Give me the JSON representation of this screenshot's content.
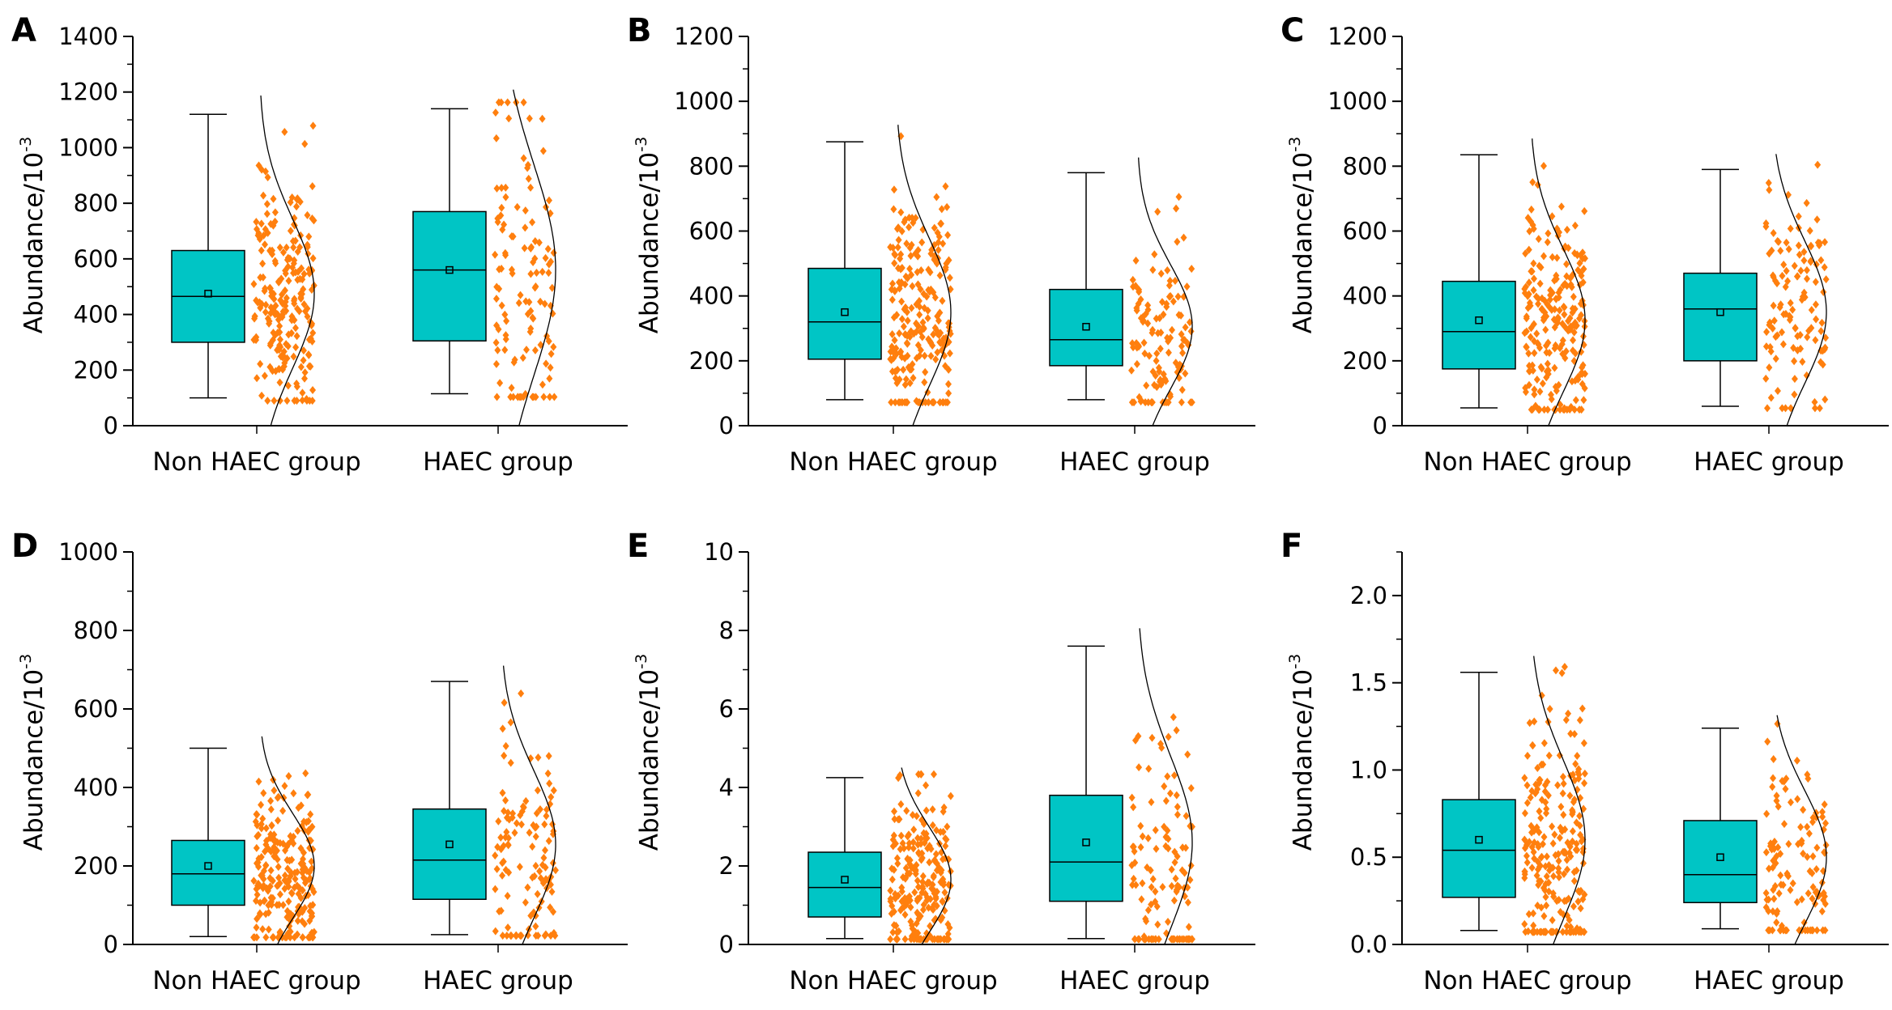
{
  "colors": {
    "box": "#00c5c5",
    "points": "#ff7f0e",
    "curve": "#000000"
  },
  "chart_data": [
    {
      "panel": "A",
      "type": "box",
      "ylabel": "Abundance/10",
      "ylabel_exp": "-3",
      "ylim": [
        0,
        1400
      ],
      "yticks": [
        0,
        200,
        400,
        600,
        800,
        1000,
        1200,
        1400
      ],
      "tick_labels": [
        "0",
        "200",
        "400",
        "600",
        "800",
        "1000",
        "1200",
        "1400"
      ],
      "categories": [
        "Non HAEC group",
        "HAEC group"
      ],
      "boxes": [
        {
          "min": 100,
          "q1": 300,
          "median": 465,
          "q3": 630,
          "max": 1120,
          "mean": 475
        },
        {
          "min": 115,
          "q1": 305,
          "median": 560,
          "q3": 770,
          "max": 1140,
          "mean": 560
        }
      ]
    },
    {
      "panel": "B",
      "type": "box",
      "ylabel": "Abundance/10",
      "ylabel_exp": "-3",
      "ylim": [
        0,
        1200
      ],
      "yticks": [
        0,
        200,
        400,
        600,
        800,
        1000,
        1200
      ],
      "tick_labels": [
        "0",
        "200",
        "400",
        "600",
        "800",
        "1000",
        "1200"
      ],
      "categories": [
        "Non HAEC group",
        "HAEC group"
      ],
      "boxes": [
        {
          "min": 80,
          "q1": 205,
          "median": 320,
          "q3": 485,
          "max": 875,
          "mean": 350
        },
        {
          "min": 80,
          "q1": 185,
          "median": 265,
          "q3": 420,
          "max": 780,
          "mean": 305
        }
      ]
    },
    {
      "panel": "C",
      "type": "box",
      "ylabel": "Abundance/10",
      "ylabel_exp": "-3",
      "ylim": [
        0,
        1200
      ],
      "yticks": [
        0,
        200,
        400,
        600,
        800,
        1000,
        1200
      ],
      "tick_labels": [
        "0",
        "200",
        "400",
        "600",
        "800",
        "1000",
        "1200"
      ],
      "categories": [
        "Non HAEC group",
        "HAEC group"
      ],
      "boxes": [
        {
          "min": 55,
          "q1": 175,
          "median": 290,
          "q3": 445,
          "max": 835,
          "mean": 325
        },
        {
          "min": 60,
          "q1": 200,
          "median": 360,
          "q3": 470,
          "max": 790,
          "mean": 350
        }
      ]
    },
    {
      "panel": "D",
      "type": "box",
      "ylabel": "Abundance/10",
      "ylabel_exp": "-3",
      "ylim": [
        0,
        1000
      ],
      "yticks": [
        0,
        200,
        400,
        600,
        800,
        1000
      ],
      "tick_labels": [
        "0",
        "200",
        "400",
        "600",
        "800",
        "1000"
      ],
      "categories": [
        "Non HAEC group",
        "HAEC group"
      ],
      "boxes": [
        {
          "min": 20,
          "q1": 100,
          "median": 180,
          "q3": 265,
          "max": 500,
          "mean": 200
        },
        {
          "min": 25,
          "q1": 115,
          "median": 215,
          "q3": 345,
          "max": 670,
          "mean": 255
        }
      ]
    },
    {
      "panel": "E",
      "type": "box",
      "ylabel": "Abundance/10",
      "ylabel_exp": "-3",
      "ylim": [
        0,
        10
      ],
      "yticks": [
        0,
        2,
        4,
        6,
        8,
        10
      ],
      "tick_labels": [
        "0",
        "2",
        "4",
        "6",
        "8",
        "10"
      ],
      "categories": [
        "Non HAEC group",
        "HAEC group"
      ],
      "boxes": [
        {
          "min": 0.15,
          "q1": 0.7,
          "median": 1.45,
          "q3": 2.35,
          "max": 4.25,
          "mean": 1.65
        },
        {
          "min": 0.15,
          "q1": 1.1,
          "median": 2.1,
          "q3": 3.8,
          "max": 7.6,
          "mean": 2.6
        }
      ]
    },
    {
      "panel": "F",
      "type": "box",
      "ylabel": "Abundance/10",
      "ylabel_exp": "-3",
      "ylim": [
        0,
        2.25
      ],
      "yticks": [
        0,
        0.5,
        1.0,
        1.5,
        2.0
      ],
      "tick_labels": [
        "0.0",
        "0.5",
        "1.0",
        "1.5",
        "2.0"
      ],
      "categories": [
        "Non HAEC group",
        "HAEC group"
      ],
      "boxes": [
        {
          "min": 0.08,
          "q1": 0.27,
          "median": 0.54,
          "q3": 0.83,
          "max": 1.56,
          "mean": 0.6
        },
        {
          "min": 0.09,
          "q1": 0.24,
          "median": 0.4,
          "q3": 0.71,
          "max": 1.24,
          "mean": 0.5
        }
      ]
    }
  ]
}
